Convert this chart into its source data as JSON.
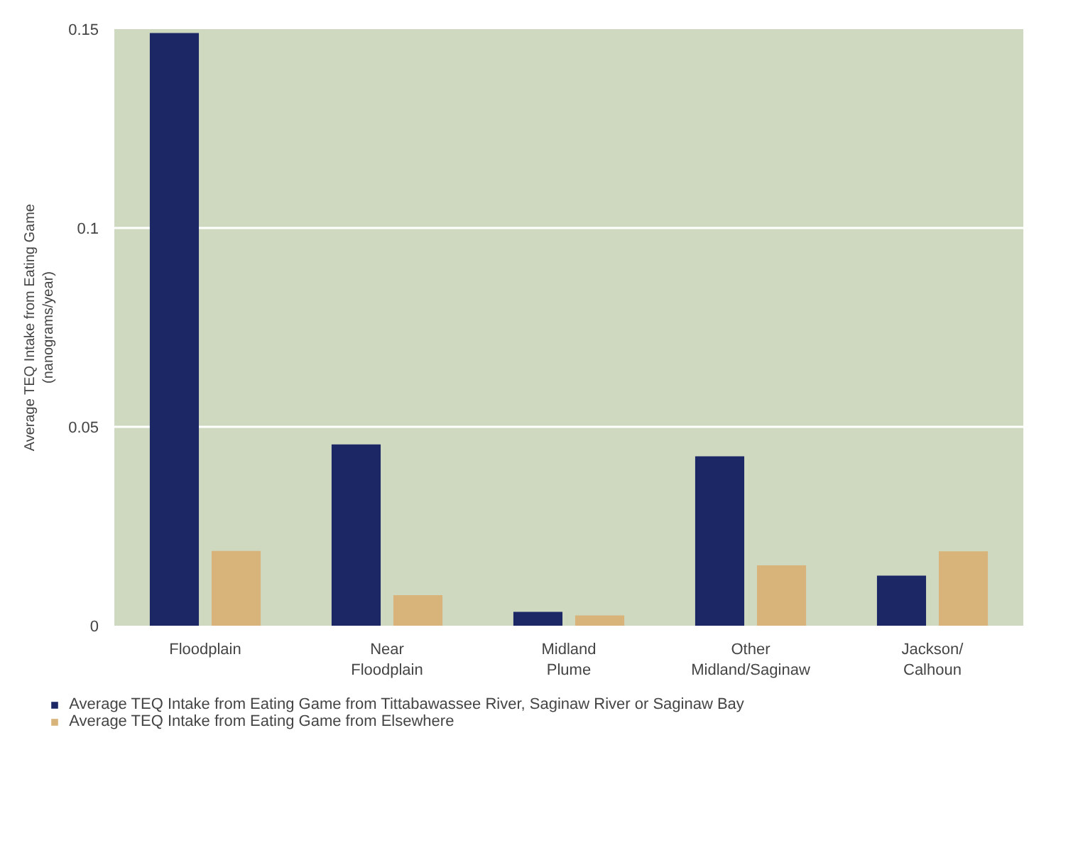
{
  "chart_data": {
    "type": "bar",
    "ylabel": "Average TEQ Intake from Eating Game\n(nanograms/year)",
    "categories": [
      "Floodplain",
      "Near\nFloodplain",
      "Midland\nPlume",
      "Other\nMidland/Saginaw",
      "Jackson/\nCalhoun"
    ],
    "series": [
      {
        "name": "Average TEQ Intake from Eating Game from Tittabawassee River, Saginaw River or Saginaw Bay",
        "color": "#1c2766",
        "values": [
          0.149,
          0.0456,
          0.0035,
          0.0426,
          0.0126
        ]
      },
      {
        "name": "Average TEQ Intake from Eating Game from Elsewhere",
        "color": "#d9b47a",
        "values": [
          0.0188,
          0.0077,
          0.0026,
          0.0152,
          0.0187
        ]
      }
    ],
    "ylim": [
      0,
      0.15
    ],
    "yticks": [
      0,
      0.05,
      0.1,
      0.15
    ],
    "grid": "y",
    "legend": "bottom"
  }
}
